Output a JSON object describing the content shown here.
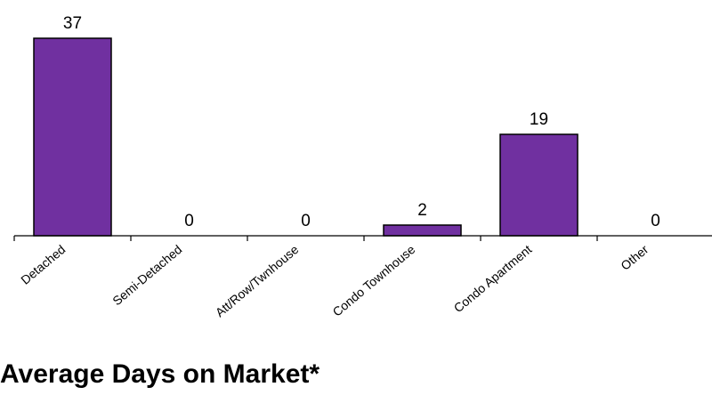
{
  "chart_data": {
    "type": "bar",
    "title": "",
    "xlabel": "",
    "ylabel": "",
    "categories": [
      "Detached",
      "Semi-Detached",
      "Att/Row/Twnhouse",
      "Condo Townhouse",
      "Condo Apartment",
      "Other"
    ],
    "values": [
      37,
      0,
      0,
      2,
      19,
      0
    ],
    "ylim": [
      0,
      37
    ],
    "grid": false,
    "legend": "none",
    "colors": {
      "bar": "#7030A0",
      "bar_outline": "#000000",
      "axis": "#000000"
    }
  },
  "footer": {
    "title": "Average Days on Market*"
  }
}
